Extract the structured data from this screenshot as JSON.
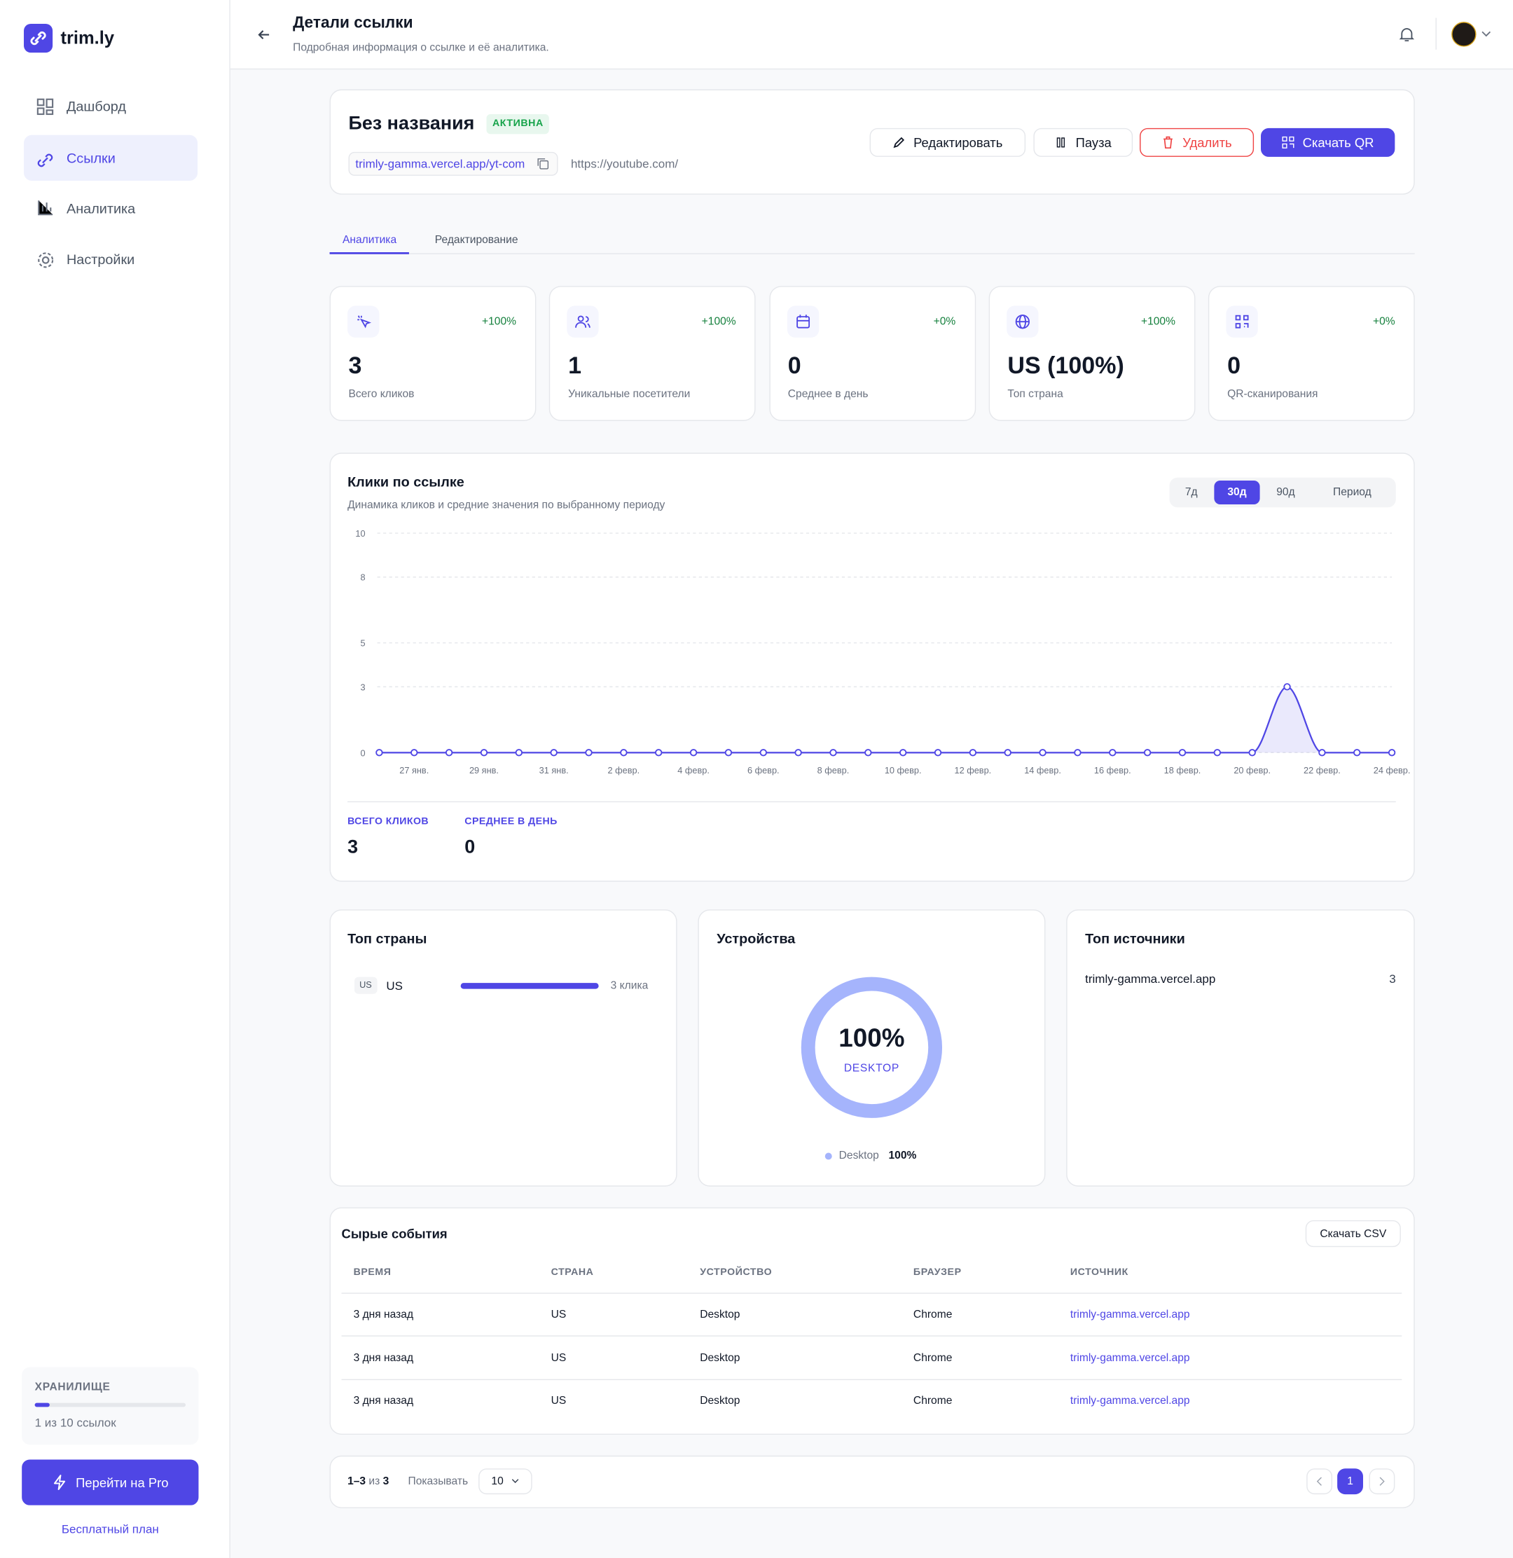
{
  "sidebar": {
    "logo": "trim.ly",
    "nav": [
      "Дашборд",
      "Ссылки",
      "Аналитика",
      "Настройки"
    ],
    "storage_label": "ХРАНИЛИЩЕ",
    "storage_text": "1 из 10 ссылок",
    "upgrade_button": "Перейти на Pro",
    "plan": "Бесплатный план"
  },
  "header": {
    "title": "Детали ссылки",
    "subtitle": "Подробная информация о ссылке и её аналитика."
  },
  "link": {
    "name": "Без названия",
    "status": "АКТИВНА",
    "short_url": "trimly-gamma.vercel.app/yt-com",
    "destination": "https://youtube.com/",
    "actions": [
      "Редактировать",
      "Пауза",
      "Удалить",
      "Скачать QR"
    ]
  },
  "tabs": [
    "Аналитика",
    "Редактирование"
  ],
  "stats": [
    {
      "change": "+100%",
      "value": "3",
      "label": "Всего кликов"
    },
    {
      "change": "+100%",
      "value": "1",
      "label": "Уникальные посетители"
    },
    {
      "change": "+0%",
      "value": "0",
      "label": "Среднее в день"
    },
    {
      "change": "+100%",
      "value": "US (100%)",
      "label": "Топ страна"
    },
    {
      "change": "+0%",
      "value": "0",
      "label": "QR-сканирования"
    }
  ],
  "clicks_chart": {
    "type": "line",
    "title": "Клики по ссылке",
    "subtitle": "Динамика кликов и средние значения по выбранному периоду",
    "ranges": [
      "7д",
      "30д",
      "90д",
      "Период"
    ],
    "active_range": 1,
    "color": "#4f46e5",
    "categories": [
      null,
      "27 янв.",
      null,
      "29 янв.",
      null,
      "31 янв.",
      null,
      "2 февр.",
      null,
      "4 февр.",
      null,
      "6 февр.",
      null,
      "8 февр.",
      null,
      "10 февр.",
      null,
      "12 февр.",
      null,
      "14 февр.",
      null,
      "16 февр.",
      null,
      "18 февр.",
      null,
      "20 февр.",
      null,
      "22 февр.",
      null,
      "24 февр."
    ],
    "values": [
      0,
      0,
      0,
      0,
      0,
      0,
      0,
      0,
      0,
      0,
      0,
      0,
      0,
      0,
      0,
      0,
      0,
      0,
      0,
      0,
      0,
      0,
      0,
      0,
      0,
      0,
      3,
      0,
      0,
      0
    ],
    "ylim": [
      0,
      10
    ],
    "yticks": [
      0,
      3,
      5,
      8,
      10
    ],
    "grid": true,
    "summary": [
      {
        "label": "ВСЕГО КЛИКОВ",
        "value": "3"
      },
      {
        "label": "СРЕДНЕЕ В ДЕНЬ",
        "value": "0"
      }
    ]
  },
  "top_countries": {
    "title": "Топ страны",
    "rows": [
      {
        "code": "US",
        "name": "US",
        "clicks": "3 клика"
      }
    ]
  },
  "devices": {
    "title": "Устройства",
    "center_value": "100%",
    "center_label": "DESKTOP",
    "legend": [
      {
        "name": "Desktop",
        "value": "100%"
      }
    ]
  },
  "top_sources": {
    "title": "Топ источники",
    "rows": [
      {
        "name": "trimly-gamma.vercel.app",
        "count": "3"
      }
    ]
  },
  "events": {
    "title": "Сырые события",
    "download": "Скачать CSV",
    "columns": [
      "ВРЕМЯ",
      "СТРАНА",
      "УСТРОЙСТВО",
      "БРАУЗЕР",
      "ИСТОЧНИК"
    ],
    "rows": [
      [
        "3 дня назад",
        "US",
        "Desktop",
        "Chrome",
        "trimly-gamma.vercel.app"
      ],
      [
        "3 дня назад",
        "US",
        "Desktop",
        "Chrome",
        "trimly-gamma.vercel.app"
      ],
      [
        "3 дня назад",
        "US",
        "Desktop",
        "Chrome",
        "trimly-gamma.vercel.app"
      ]
    ]
  },
  "pagination": {
    "range": "1–3",
    "of": "из",
    "total": "3",
    "show_label": "Показывать",
    "page_size": "10",
    "current_page": "1"
  }
}
